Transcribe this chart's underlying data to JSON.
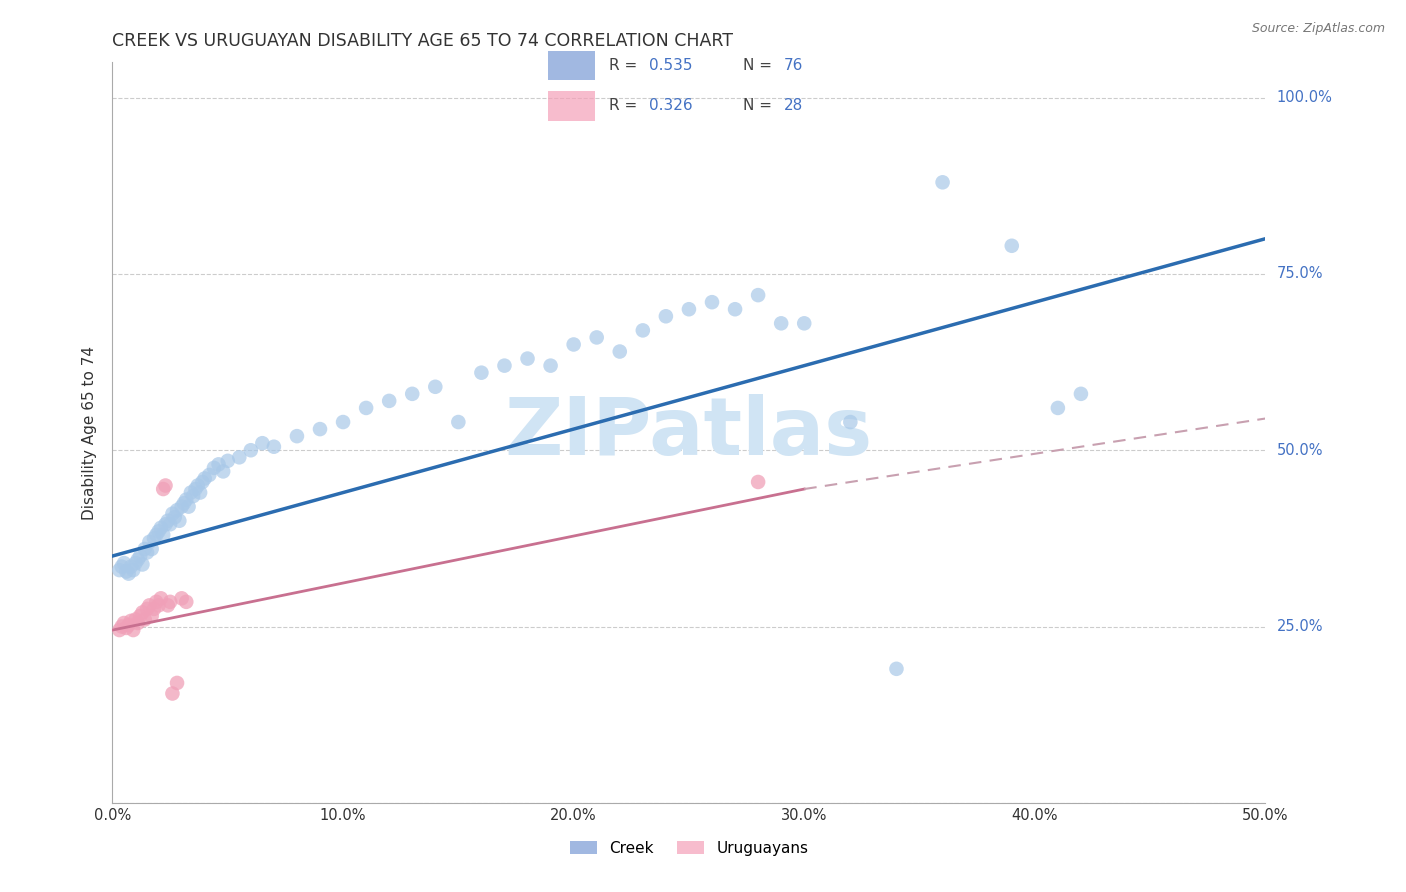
{
  "title": "CREEK VS URUGUAYAN DISABILITY AGE 65 TO 74 CORRELATION CHART",
  "source": "Source: ZipAtlas.com",
  "ylabel": "Disability Age 65 to 74",
  "xlim": [
    0.0,
    0.5
  ],
  "ylim": [
    0.0,
    1.05
  ],
  "ytick_positions": [
    0.0,
    0.25,
    0.5,
    0.75,
    1.0
  ],
  "ytick_labels": [
    "",
    "25.0%",
    "50.0%",
    "75.0%",
    "100.0%"
  ],
  "xtick_positions": [
    0.0,
    0.1,
    0.2,
    0.3,
    0.4,
    0.5
  ],
  "xtick_labels": [
    "0.0%",
    "10.0%",
    "20.0%",
    "30.0%",
    "40.0%",
    "50.0%"
  ],
  "creek_R": "0.535",
  "creek_N": "76",
  "uruguayan_R": "0.326",
  "uruguayan_N": "28",
  "creek_dot_color": "#a8c8e8",
  "creek_line_color": "#2b6cb0",
  "uruguayan_dot_color": "#f0a0b8",
  "uruguayan_line_color": "#c87090",
  "uruguayan_line_dash_color": "#c8a0b0",
  "legend_blue_color": "#4472c4",
  "legend_pink_color": "#f4a0b8",
  "text_blue_color": "#4472c4",
  "label_color": "#555555",
  "grid_color": "#cccccc",
  "background_color": "#ffffff",
  "watermark_text": "ZIPatlas",
  "watermark_color": "#d0e4f4",
  "creek_points": [
    [
      0.003,
      0.33
    ],
    [
      0.004,
      0.335
    ],
    [
      0.005,
      0.34
    ],
    [
      0.006,
      0.328
    ],
    [
      0.007,
      0.325
    ],
    [
      0.008,
      0.335
    ],
    [
      0.009,
      0.33
    ],
    [
      0.01,
      0.34
    ],
    [
      0.011,
      0.345
    ],
    [
      0.012,
      0.35
    ],
    [
      0.013,
      0.338
    ],
    [
      0.014,
      0.36
    ],
    [
      0.015,
      0.355
    ],
    [
      0.016,
      0.37
    ],
    [
      0.017,
      0.36
    ],
    [
      0.018,
      0.375
    ],
    [
      0.019,
      0.38
    ],
    [
      0.02,
      0.385
    ],
    [
      0.021,
      0.39
    ],
    [
      0.022,
      0.38
    ],
    [
      0.023,
      0.395
    ],
    [
      0.024,
      0.4
    ],
    [
      0.025,
      0.395
    ],
    [
      0.026,
      0.41
    ],
    [
      0.027,
      0.405
    ],
    [
      0.028,
      0.415
    ],
    [
      0.029,
      0.4
    ],
    [
      0.03,
      0.42
    ],
    [
      0.031,
      0.425
    ],
    [
      0.032,
      0.43
    ],
    [
      0.033,
      0.42
    ],
    [
      0.034,
      0.44
    ],
    [
      0.035,
      0.435
    ],
    [
      0.036,
      0.445
    ],
    [
      0.037,
      0.45
    ],
    [
      0.038,
      0.44
    ],
    [
      0.039,
      0.455
    ],
    [
      0.04,
      0.46
    ],
    [
      0.042,
      0.465
    ],
    [
      0.044,
      0.475
    ],
    [
      0.046,
      0.48
    ],
    [
      0.048,
      0.47
    ],
    [
      0.05,
      0.485
    ],
    [
      0.055,
      0.49
    ],
    [
      0.06,
      0.5
    ],
    [
      0.065,
      0.51
    ],
    [
      0.07,
      0.505
    ],
    [
      0.08,
      0.52
    ],
    [
      0.09,
      0.53
    ],
    [
      0.1,
      0.54
    ],
    [
      0.11,
      0.56
    ],
    [
      0.12,
      0.57
    ],
    [
      0.13,
      0.58
    ],
    [
      0.14,
      0.59
    ],
    [
      0.15,
      0.54
    ],
    [
      0.16,
      0.61
    ],
    [
      0.17,
      0.62
    ],
    [
      0.18,
      0.63
    ],
    [
      0.19,
      0.62
    ],
    [
      0.2,
      0.65
    ],
    [
      0.21,
      0.66
    ],
    [
      0.22,
      0.64
    ],
    [
      0.23,
      0.67
    ],
    [
      0.24,
      0.69
    ],
    [
      0.25,
      0.7
    ],
    [
      0.26,
      0.71
    ],
    [
      0.27,
      0.7
    ],
    [
      0.28,
      0.72
    ],
    [
      0.29,
      0.68
    ],
    [
      0.3,
      0.68
    ],
    [
      0.32,
      0.54
    ],
    [
      0.34,
      0.19
    ],
    [
      0.36,
      0.88
    ],
    [
      0.39,
      0.79
    ],
    [
      0.41,
      0.56
    ],
    [
      0.42,
      0.58
    ]
  ],
  "uruguayan_points": [
    [
      0.003,
      0.245
    ],
    [
      0.004,
      0.25
    ],
    [
      0.005,
      0.255
    ],
    [
      0.006,
      0.248
    ],
    [
      0.007,
      0.252
    ],
    [
      0.008,
      0.258
    ],
    [
      0.009,
      0.245
    ],
    [
      0.01,
      0.26
    ],
    [
      0.011,
      0.255
    ],
    [
      0.012,
      0.265
    ],
    [
      0.013,
      0.27
    ],
    [
      0.014,
      0.26
    ],
    [
      0.015,
      0.275
    ],
    [
      0.016,
      0.28
    ],
    [
      0.017,
      0.265
    ],
    [
      0.018,
      0.275
    ],
    [
      0.019,
      0.285
    ],
    [
      0.02,
      0.28
    ],
    [
      0.021,
      0.29
    ],
    [
      0.022,
      0.445
    ],
    [
      0.023,
      0.45
    ],
    [
      0.024,
      0.28
    ],
    [
      0.025,
      0.285
    ],
    [
      0.026,
      0.155
    ],
    [
      0.028,
      0.17
    ],
    [
      0.03,
      0.29
    ],
    [
      0.032,
      0.285
    ],
    [
      0.28,
      0.455
    ]
  ]
}
